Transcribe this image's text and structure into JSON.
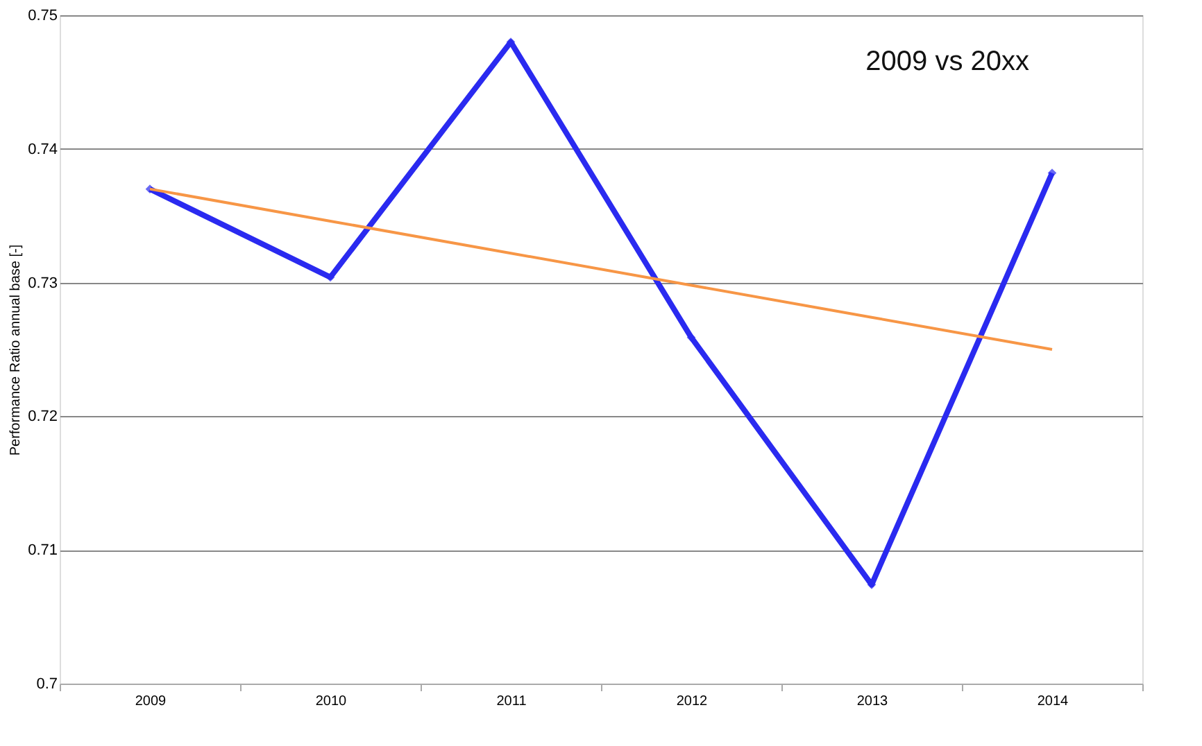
{
  "chart_data": {
    "type": "line",
    "ylabel": "Performance Ratio annual base [-]",
    "categories": [
      "2009",
      "2010",
      "2011",
      "2012",
      "2013",
      "2014"
    ],
    "series": [
      {
        "color": "#2a2af0",
        "values": [
          0.737,
          0.7304,
          0.748,
          0.7259,
          0.7074,
          0.7382
        ],
        "marker": "diamond"
      },
      {
        "color": "#f79646",
        "values": [
          0.737,
          0.7346,
          0.7322,
          0.7298,
          0.7274,
          0.725
        ],
        "marker": "none"
      }
    ],
    "ylim": [
      0.7,
      0.75
    ],
    "yticks": [
      {
        "value": 0.7,
        "label": "0.7"
      },
      {
        "value": 0.71,
        "label": "0.71"
      },
      {
        "value": 0.72,
        "label": "0.72"
      },
      {
        "value": 0.73,
        "label": "0.73"
      },
      {
        "value": 0.74,
        "label": "0.74"
      },
      {
        "value": 0.75,
        "label": "0.75"
      }
    ],
    "grid": "y",
    "annotations": [
      "2009 vs 20xx"
    ]
  }
}
